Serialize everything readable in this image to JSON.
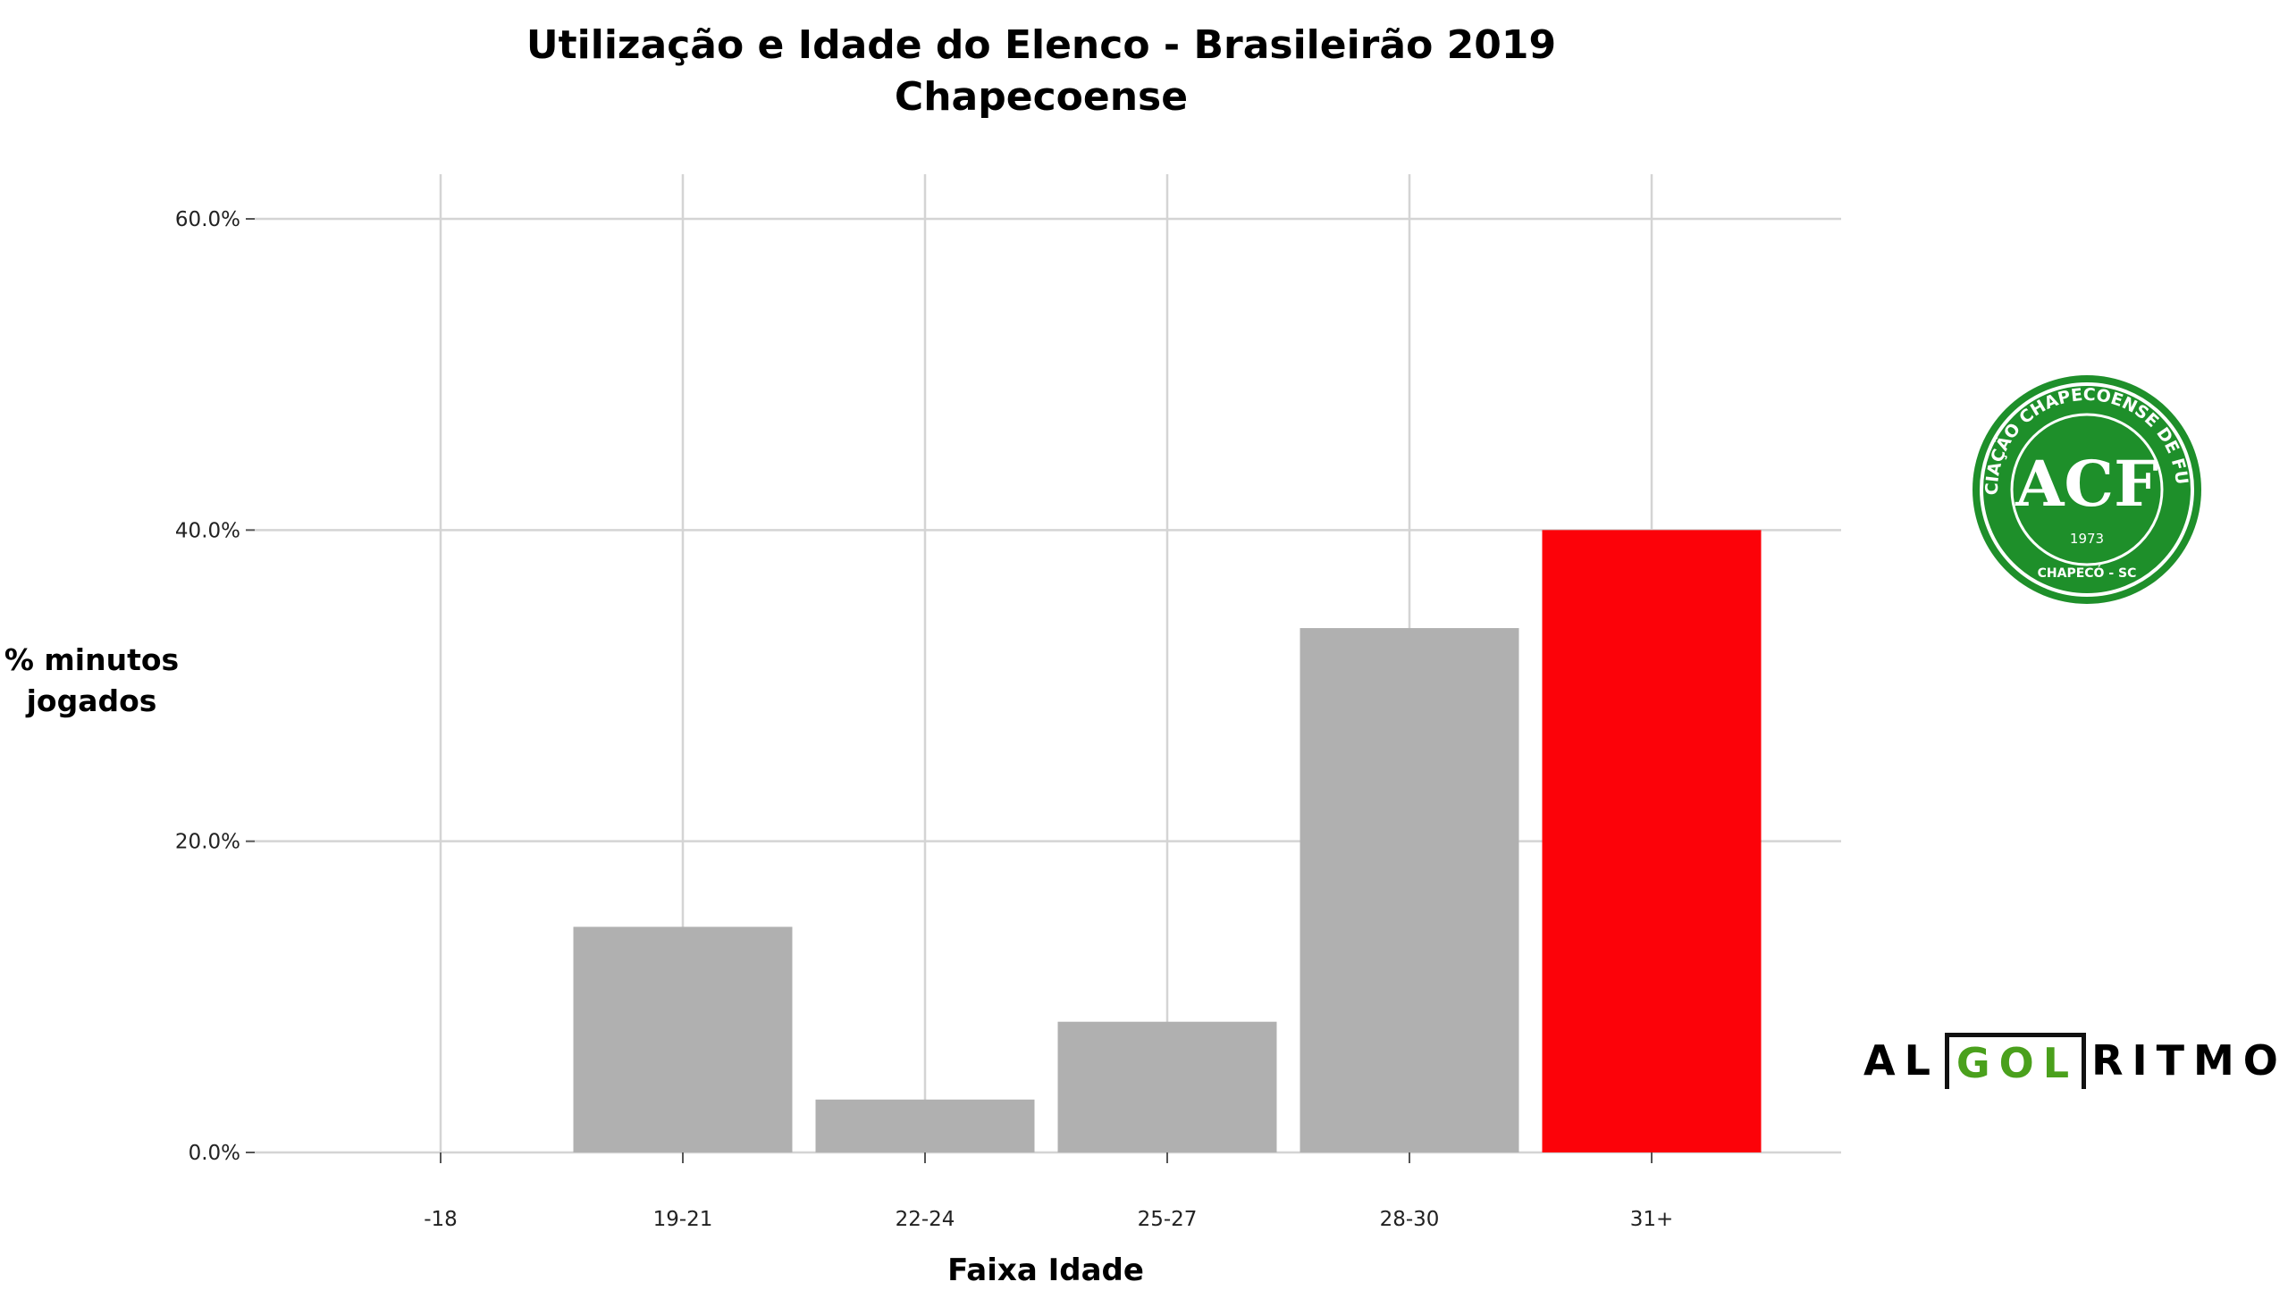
{
  "title": {
    "line1": "Utilização e Idade do Elenco - Brasileirão 2019",
    "line2": "Chapecoense"
  },
  "colors": {
    "bar": "#b0b0b0",
    "highlight": "#fc0209",
    "grid": "#d4d4d4",
    "badge": "#1e8f2a",
    "algo_green": "#4aa01c"
  },
  "chart_data": {
    "type": "bar",
    "title": "Utilização e Idade do Elenco - Brasileirão 2019",
    "subtitle": "Chapecoense",
    "xlabel": "Faixa Idade",
    "ylabel": "% minutos jogados",
    "categories": [
      "-18",
      "19-21",
      "22-24",
      "25-27",
      "28-30",
      "31+"
    ],
    "values": [
      0.0,
      14.5,
      3.4,
      8.4,
      33.7,
      40.0
    ],
    "highlight_index": 5,
    "ylim": [
      0,
      60
    ],
    "yticks": [
      0,
      20,
      40,
      60
    ],
    "ytick_labels": [
      "0.0%",
      "20.0%",
      "40.0%",
      "60.0%"
    ],
    "grid": true,
    "legend": false
  },
  "logos": {
    "club_name": "ASSOCIAÇÃO CHAPECOENSE DE FUTEBOL",
    "club_initials": "ACF",
    "club_year": "1973",
    "club_city": "CHAPECÓ - SC",
    "brand_left": "AL",
    "brand_mid": "GOL",
    "brand_right": "RITMO"
  }
}
